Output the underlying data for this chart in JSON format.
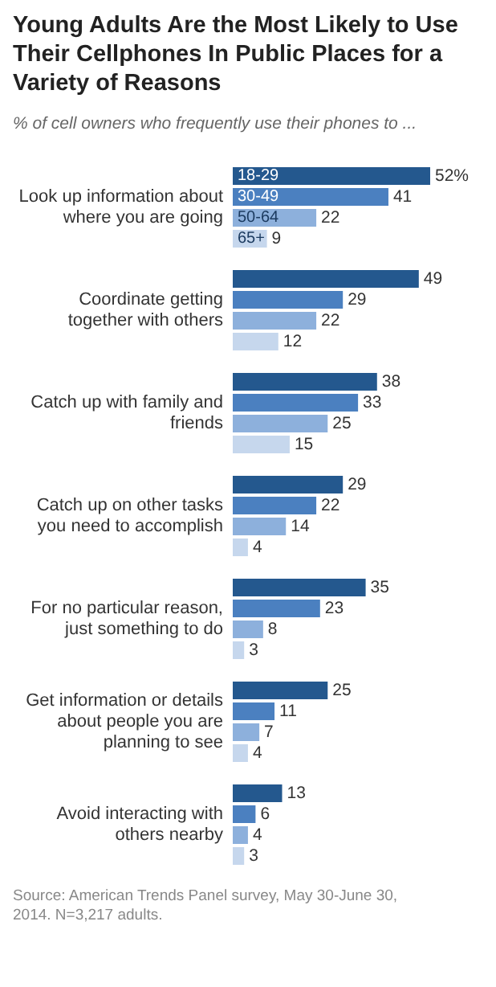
{
  "chart_data": {
    "type": "bar",
    "orientation": "horizontal",
    "title": "Young Adults Are the Most Likely to Use Their Cellphones In Public Places for a Variety of Reasons",
    "subtitle": "% of cell owners who frequently use their phones to ...",
    "categories": [
      "Look up information about where you are going",
      "Coordinate getting together with others",
      "Catch up with family and friends",
      "Catch up on other tasks you need to accomplish",
      "For no particular reason, just something to do",
      "Get information or details about people you are planning to see",
      "Avoid interacting with others nearby"
    ],
    "series": [
      {
        "name": "18-29",
        "color": "#24588e",
        "values": [
          52,
          49,
          38,
          29,
          35,
          25,
          13
        ],
        "value_labels": [
          "52%",
          "49",
          "38",
          "29",
          "35",
          "25",
          "13"
        ]
      },
      {
        "name": "30-49",
        "color": "#4b80c0",
        "values": [
          41,
          29,
          33,
          22,
          23,
          11,
          6
        ],
        "value_labels": [
          "41",
          "29",
          "33",
          "22",
          "23",
          "11",
          "6"
        ]
      },
      {
        "name": "50-64",
        "color": "#8db0dc",
        "values": [
          22,
          22,
          25,
          14,
          8,
          7,
          4
        ],
        "value_labels": [
          "22",
          "22",
          "25",
          "14",
          "8",
          "7",
          "4"
        ]
      },
      {
        "name": "65+",
        "color": "#c6d7ed",
        "values": [
          9,
          12,
          15,
          4,
          3,
          4,
          3
        ],
        "value_labels": [
          "9",
          "12",
          "15",
          "4",
          "3",
          "4",
          "3"
        ]
      }
    ],
    "legend": "top left",
    "annotations": [
      "Source: American Trends Panel survey, May 30-June 30, 2014. N=3,217 adults."
    ]
  }
}
